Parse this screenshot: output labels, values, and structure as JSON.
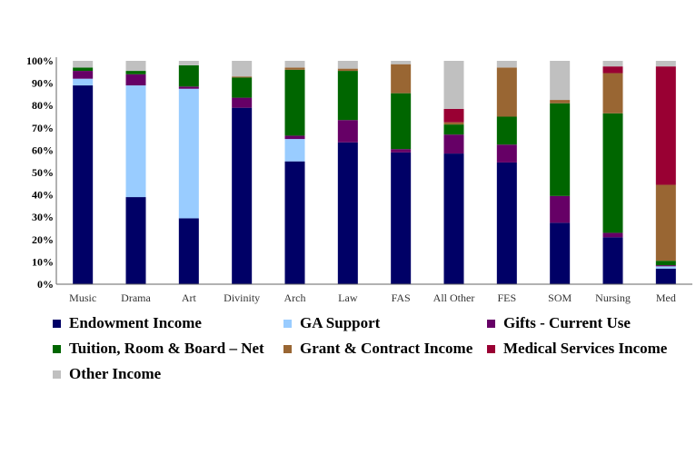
{
  "chart_data": {
    "type": "bar",
    "stacked": true,
    "categories": [
      "Music",
      "Drama",
      "Art",
      "Divinity",
      "Arch",
      "Law",
      "FAS",
      "All Other",
      "FES",
      "SOM",
      "Nursing",
      "Med"
    ],
    "y_tick_labels": [
      "0%",
      "10%",
      "20%",
      "30%",
      "40%",
      "50%",
      "60%",
      "70%",
      "80%",
      "90%",
      "100%"
    ],
    "ylim": [
      0,
      100
    ],
    "grid": false,
    "legend_position": "bottom",
    "series": [
      {
        "name": "Endowment Income",
        "color": "#000066",
        "values": [
          89,
          39,
          29.5,
          79,
          55,
          63.5,
          59,
          58.5,
          54.5,
          27.5,
          21,
          7
        ]
      },
      {
        "name": "GA Support",
        "color": "#99CCFF",
        "values": [
          3,
          50,
          58,
          0,
          10,
          0,
          0,
          0,
          0,
          0,
          0,
          1
        ]
      },
      {
        "name": "Gifts - Current Use",
        "color": "#660066",
        "values": [
          3.5,
          5,
          1,
          4.5,
          1.5,
          10,
          1.5,
          8.5,
          8,
          12,
          2,
          0.5
        ]
      },
      {
        "name": "Tuition, Room & Board – Net",
        "color": "#006600",
        "values": [
          1.5,
          1.5,
          9.5,
          9,
          29.5,
          22,
          25,
          4.5,
          12.5,
          41.5,
          53.5,
          2
        ]
      },
      {
        "name": "Grant & Contract Income",
        "color": "#996633",
        "values": [
          0,
          0,
          0,
          0.5,
          1,
          1,
          13,
          1,
          22,
          1.5,
          18,
          34
        ]
      },
      {
        "name": "Medical Services Income",
        "color": "#990033",
        "values": [
          0,
          0,
          0,
          0,
          0,
          0,
          0,
          6,
          0,
          0,
          3,
          53
        ]
      },
      {
        "name": "Other Income",
        "color": "#C0C0C0",
        "values": [
          3,
          4.5,
          2,
          7,
          3,
          3.5,
          1.5,
          21.5,
          3,
          17.5,
          2.5,
          2.5
        ]
      }
    ]
  }
}
